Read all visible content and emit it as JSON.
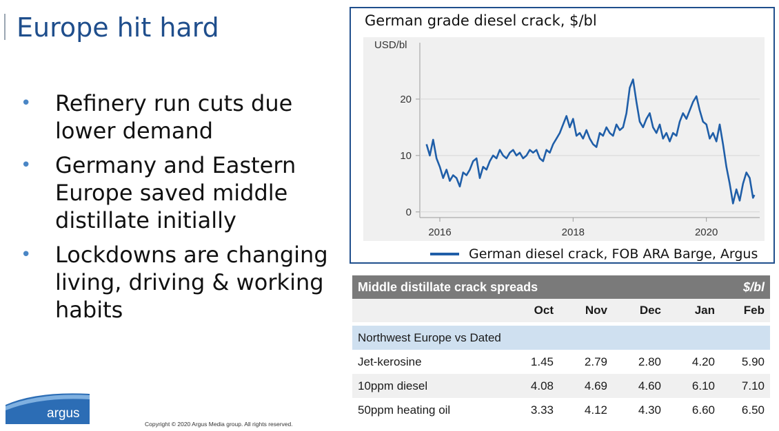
{
  "slide": {
    "title": "Europe hit hard",
    "bullets": [
      "Refinery run cuts due lower demand",
      "Germany and Eastern Europe saved middle distillate initially",
      "Lockdowns are changing living, driving & working habits"
    ],
    "bullet_glyph": "•",
    "copyright": "Copyright © 2020 Argus Media group. All rights reserved.",
    "logo_text": "argus"
  },
  "chart_data": {
    "type": "line",
    "title": "German grade diesel crack, $/bl",
    "ylabel": "USD/bl",
    "xlabel": "",
    "xlim": [
      2015.7,
      2020.8
    ],
    "ylim": [
      -1,
      30
    ],
    "yticks": [
      0,
      10,
      20
    ],
    "xticks": [
      2016,
      2018,
      2020
    ],
    "grid": true,
    "legend": "bottom",
    "series": [
      {
        "name": "German diesel crack, FOB ARA Barge, Argus",
        "color": "#1f5ea8",
        "x": [
          2015.8,
          2015.85,
          2015.9,
          2015.95,
          2016.0,
          2016.05,
          2016.1,
          2016.15,
          2016.2,
          2016.25,
          2016.3,
          2016.35,
          2016.4,
          2016.45,
          2016.5,
          2016.55,
          2016.6,
          2016.65,
          2016.7,
          2016.75,
          2016.8,
          2016.85,
          2016.9,
          2016.95,
          2017.0,
          2017.05,
          2017.1,
          2017.15,
          2017.2,
          2017.25,
          2017.3,
          2017.35,
          2017.4,
          2017.45,
          2017.5,
          2017.55,
          2017.6,
          2017.65,
          2017.7,
          2017.75,
          2017.8,
          2017.85,
          2017.9,
          2017.95,
          2018.0,
          2018.05,
          2018.1,
          2018.15,
          2018.2,
          2018.25,
          2018.3,
          2018.35,
          2018.4,
          2018.45,
          2018.5,
          2018.55,
          2018.6,
          2018.65,
          2018.7,
          2018.75,
          2018.8,
          2018.85,
          2018.9,
          2018.95,
          2019.0,
          2019.05,
          2019.1,
          2019.15,
          2019.2,
          2019.25,
          2019.3,
          2019.35,
          2019.4,
          2019.45,
          2019.5,
          2019.55,
          2019.6,
          2019.65,
          2019.7,
          2019.75,
          2019.8,
          2019.85,
          2019.9,
          2019.95,
          2020.0,
          2020.05,
          2020.1,
          2020.15,
          2020.2,
          2020.25,
          2020.3,
          2020.35,
          2020.4,
          2020.45,
          2020.5,
          2020.55,
          2020.6,
          2020.65,
          2020.7,
          2020.72
        ],
        "values": [
          12.0,
          10.0,
          12.8,
          9.5,
          8.0,
          6.0,
          7.5,
          5.5,
          6.5,
          6.0,
          4.5,
          7.0,
          6.5,
          7.5,
          9.0,
          9.5,
          6.0,
          8.0,
          7.5,
          9.0,
          10.0,
          9.5,
          11.0,
          10.0,
          9.5,
          10.5,
          11.0,
          10.0,
          10.5,
          9.5,
          10.0,
          11.0,
          10.5,
          11.0,
          9.5,
          9.0,
          11.0,
          10.5,
          12.0,
          13.0,
          14.0,
          15.5,
          17.0,
          15.0,
          16.5,
          13.5,
          14.0,
          13.0,
          14.5,
          13.0,
          12.0,
          11.5,
          14.0,
          13.5,
          15.0,
          14.0,
          13.5,
          15.5,
          14.5,
          15.0,
          17.5,
          22.0,
          23.5,
          19.5,
          16.0,
          15.0,
          16.5,
          17.5,
          15.0,
          14.0,
          15.5,
          13.0,
          14.0,
          12.5,
          14.0,
          13.5,
          16.0,
          17.5,
          16.5,
          18.0,
          19.5,
          20.5,
          18.0,
          16.0,
          15.5,
          13.0,
          14.0,
          12.5,
          15.5,
          12.0,
          8.0,
          5.0,
          1.5,
          4.0,
          2.0,
          5.0,
          7.0,
          6.0,
          2.5,
          3.0
        ]
      }
    ]
  },
  "table": {
    "title": "Middle distillate crack spreads",
    "unit": "$/bl",
    "columns": [
      "Oct",
      "Nov",
      "Dec",
      "Jan",
      "Feb"
    ],
    "section": "Northwest Europe vs Dated",
    "rows": [
      {
        "label": "Jet-kerosine",
        "values": [
          "1.45",
          "2.79",
          "2.80",
          "4.20",
          "5.90"
        ]
      },
      {
        "label": "10ppm diesel",
        "values": [
          "4.08",
          "4.69",
          "4.60",
          "6.10",
          "7.10"
        ]
      },
      {
        "label": "50ppm heating oil",
        "values": [
          "3.33",
          "4.12",
          "4.30",
          "6.60",
          "6.50"
        ]
      }
    ]
  }
}
